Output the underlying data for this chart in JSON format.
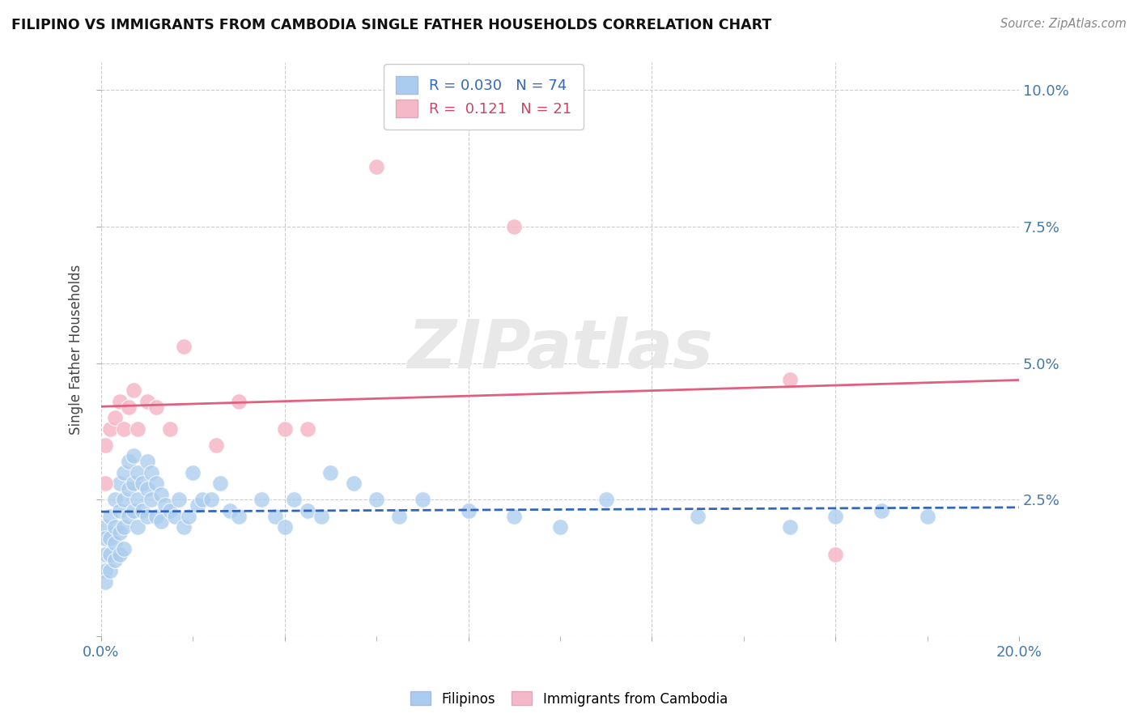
{
  "title": "FILIPINO VS IMMIGRANTS FROM CAMBODIA SINGLE FATHER HOUSEHOLDS CORRELATION CHART",
  "source": "Source: ZipAtlas.com",
  "ylabel": "Single Father Households",
  "xlim": [
    0.0,
    0.2
  ],
  "ylim": [
    0.0,
    0.105
  ],
  "ytick_vals": [
    0.0,
    0.025,
    0.05,
    0.075,
    0.1
  ],
  "ytick_labels_right": [
    "",
    "2.5%",
    "5.0%",
    "7.5%",
    "10.0%"
  ],
  "xtick_vals": [
    0.0,
    0.04,
    0.08,
    0.12,
    0.16,
    0.2
  ],
  "xtick_labels": [
    "0.0%",
    "",
    "",
    "",
    "",
    "20.0%"
  ],
  "minor_xtick_vals": [
    0.02,
    0.06,
    0.1,
    0.14,
    0.18
  ],
  "filipino_color": "#aaccee",
  "cambodia_color": "#f5b8c8",
  "filipino_line_color": "#3366bb",
  "cambodia_line_color": "#e06080",
  "watermark_color": "#e8e8e8",
  "legend_R_filipino": "0.030",
  "legend_N_filipino": "74",
  "legend_R_cambodia": "0.121",
  "legend_N_cambodia": "21",
  "legend_text_blue": "#3366bb",
  "legend_text_pink": "#cc4466",
  "fil_x": [
    0.001,
    0.001,
    0.001,
    0.001,
    0.001,
    0.002,
    0.002,
    0.002,
    0.002,
    0.003,
    0.003,
    0.003,
    0.003,
    0.004,
    0.004,
    0.004,
    0.004,
    0.005,
    0.005,
    0.005,
    0.005,
    0.006,
    0.006,
    0.006,
    0.007,
    0.007,
    0.007,
    0.008,
    0.008,
    0.008,
    0.009,
    0.009,
    0.01,
    0.01,
    0.01,
    0.011,
    0.011,
    0.012,
    0.012,
    0.013,
    0.013,
    0.014,
    0.015,
    0.016,
    0.017,
    0.018,
    0.019,
    0.02,
    0.021,
    0.022,
    0.024,
    0.026,
    0.028,
    0.03,
    0.035,
    0.038,
    0.04,
    0.042,
    0.045,
    0.048,
    0.05,
    0.055,
    0.06,
    0.065,
    0.07,
    0.08,
    0.09,
    0.1,
    0.11,
    0.13,
    0.15,
    0.16,
    0.17,
    0.18
  ],
  "fil_y": [
    0.02,
    0.018,
    0.015,
    0.012,
    0.01,
    0.022,
    0.018,
    0.015,
    0.012,
    0.025,
    0.02,
    0.017,
    0.014,
    0.028,
    0.023,
    0.019,
    0.015,
    0.03,
    0.025,
    0.02,
    0.016,
    0.032,
    0.027,
    0.022,
    0.033,
    0.028,
    0.023,
    0.03,
    0.025,
    0.02,
    0.028,
    0.023,
    0.032,
    0.027,
    0.022,
    0.03,
    0.025,
    0.028,
    0.022,
    0.026,
    0.021,
    0.024,
    0.023,
    0.022,
    0.025,
    0.02,
    0.022,
    0.03,
    0.024,
    0.025,
    0.025,
    0.028,
    0.023,
    0.022,
    0.025,
    0.022,
    0.02,
    0.025,
    0.023,
    0.022,
    0.03,
    0.028,
    0.025,
    0.022,
    0.025,
    0.023,
    0.022,
    0.02,
    0.025,
    0.022,
    0.02,
    0.022,
    0.023,
    0.022
  ],
  "cam_x": [
    0.001,
    0.001,
    0.002,
    0.003,
    0.004,
    0.005,
    0.006,
    0.007,
    0.008,
    0.01,
    0.012,
    0.015,
    0.018,
    0.025,
    0.03,
    0.04,
    0.045,
    0.06,
    0.09,
    0.15,
    0.16
  ],
  "cam_y": [
    0.035,
    0.028,
    0.038,
    0.04,
    0.043,
    0.038,
    0.042,
    0.045,
    0.038,
    0.043,
    0.042,
    0.038,
    0.053,
    0.035,
    0.043,
    0.038,
    0.038,
    0.086,
    0.075,
    0.047,
    0.015
  ]
}
